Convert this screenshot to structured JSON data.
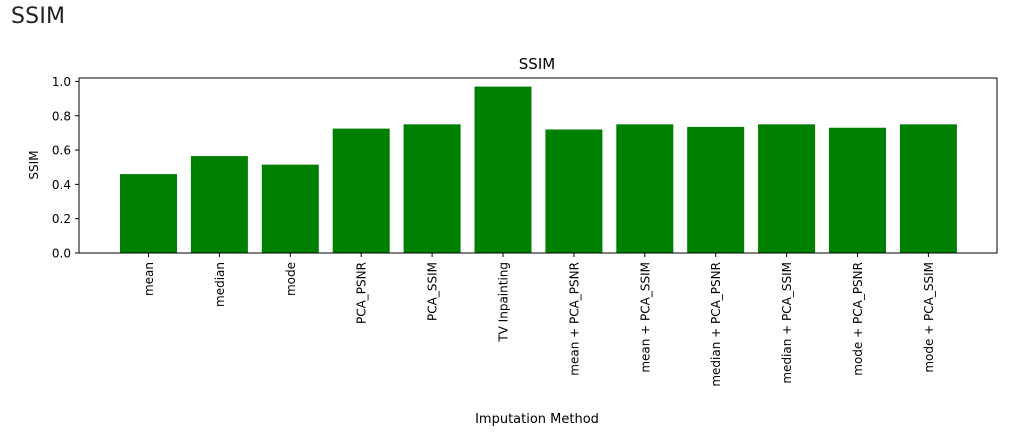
{
  "page": {
    "heading": "SSIM"
  },
  "chart_data": {
    "type": "bar",
    "title": "SSIM",
    "xlabel": "Imputation Method",
    "ylabel": "SSIM",
    "ylim": [
      0,
      1.02
    ],
    "yticks": [
      0.0,
      0.2,
      0.4,
      0.6,
      0.8,
      1.0
    ],
    "ytick_labels": [
      "0.0",
      "0.2",
      "0.4",
      "0.6",
      "0.8",
      "1.0"
    ],
    "grid": false,
    "legend": "none",
    "bar_color": "#008000",
    "categories": [
      "mean",
      "median",
      "mode",
      "PCA_PSNR",
      "PCA_SSIM",
      "TV Inpainting",
      "mean + PCA_PSNR",
      "mean + PCA_SSIM",
      "median + PCA_PSNR",
      "median + PCA_SSIM",
      "mode + PCA_PSNR",
      "mode + PCA_SSIM"
    ],
    "values": [
      0.46,
      0.565,
      0.515,
      0.725,
      0.75,
      0.97,
      0.72,
      0.75,
      0.735,
      0.75,
      0.73,
      0.75
    ]
  }
}
